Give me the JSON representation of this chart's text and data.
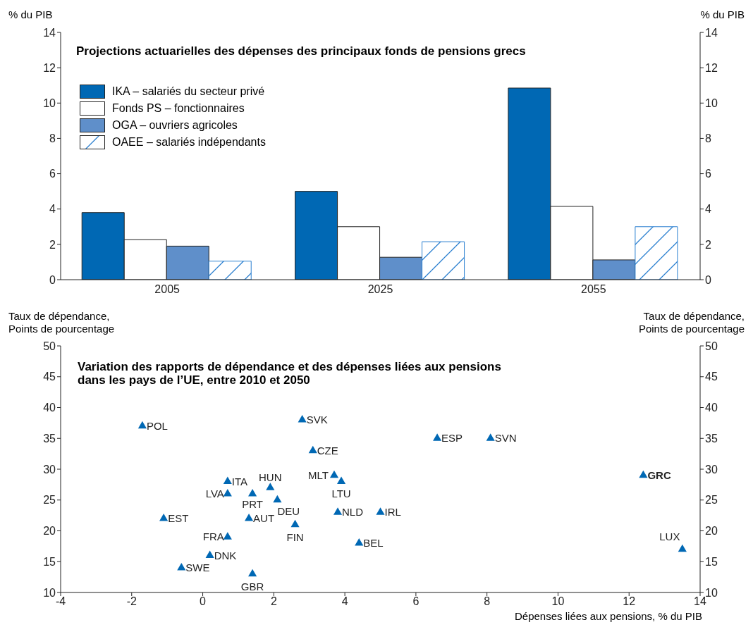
{
  "chart_data": [
    {
      "type": "bar",
      "title": "Projections actuarielles des dépenses des principaux fonds de pensions grecs",
      "ylabel": "% du PIB",
      "y2label": "% du PIB",
      "categories": [
        "2005",
        "2025",
        "2055"
      ],
      "series": [
        {
          "name": "IKA – salariés du secteur privé",
          "color": "#0068b4",
          "values": [
            3.8,
            5.0,
            10.85
          ]
        },
        {
          "name": "Fonds PS – fonctionnaires",
          "color": "#ffffff",
          "values": [
            2.27,
            3.0,
            4.15
          ]
        },
        {
          "name": "OGA – ouvriers agricoles",
          "color": "#5f8fca",
          "values": [
            1.9,
            1.27,
            1.12
          ]
        },
        {
          "name": "OAEE – salariés indépendants",
          "color": "#2a7fd0",
          "values": [
            1.05,
            2.15,
            3.0
          ]
        }
      ],
      "ylim": [
        0,
        14
      ],
      "yticks": [
        0,
        2,
        4,
        6,
        8,
        10,
        12,
        14
      ],
      "y2lim": [
        0,
        14
      ],
      "y2ticks": [
        0,
        2,
        4,
        6,
        8,
        10,
        12,
        14
      ],
      "legend": "top left"
    },
    {
      "type": "scatter",
      "title": "Variation des rapports de dépendance et des dépenses liées aux pensions\ndans les pays de l’UE, entre 2010 et 2050",
      "xlabel": "Dépenses liées aux pensions, % du PIB",
      "ylabel": "Taux de dépendance,\nPoints de pourcentage",
      "y2label": "Taux de dépendance,\nPoints de pourcentage",
      "x": [
        -1.7,
        2.8,
        6.6,
        8.1,
        3.1,
        3.7,
        3.9,
        12.4,
        0.7,
        1.9,
        0.7,
        1.4,
        2.1,
        3.8,
        5.0,
        -1.1,
        1.3,
        2.6,
        0.7,
        4.4,
        13.5,
        0.2,
        -0.6,
        1.4
      ],
      "values": [
        37,
        38,
        35,
        35,
        33,
        29,
        28,
        29,
        28,
        27,
        26,
        26,
        25,
        23,
        23,
        22,
        22,
        21,
        19,
        18,
        17,
        16,
        14,
        13
      ],
      "color": "#0068b4",
      "marker": "triangle",
      "annotations": [
        {
          "text": "POL",
          "x": -1.7,
          "y": 37
        },
        {
          "text": "SVK",
          "x": 2.8,
          "y": 38
        },
        {
          "text": "ESP",
          "x": 6.6,
          "y": 35
        },
        {
          "text": "SVN",
          "x": 8.1,
          "y": 35
        },
        {
          "text": "CZE",
          "x": 3.1,
          "y": 33
        },
        {
          "text": "MLT",
          "x": 3.7,
          "y": 29
        },
        {
          "text": "LTU",
          "x": 3.9,
          "y": 28
        },
        {
          "text": "GRC",
          "x": 12.4,
          "y": 29
        },
        {
          "text": "ITA",
          "x": 0.7,
          "y": 28
        },
        {
          "text": "HUN",
          "x": 1.9,
          "y": 27
        },
        {
          "text": "LVA",
          "x": 0.7,
          "y": 26
        },
        {
          "text": "PRT",
          "x": 1.4,
          "y": 26
        },
        {
          "text": "DEU",
          "x": 2.1,
          "y": 25
        },
        {
          "text": "NLD",
          "x": 3.8,
          "y": 23
        },
        {
          "text": "IRL",
          "x": 5.0,
          "y": 23
        },
        {
          "text": "EST",
          "x": -1.1,
          "y": 22
        },
        {
          "text": "AUT",
          "x": 1.3,
          "y": 22
        },
        {
          "text": "FIN",
          "x": 2.6,
          "y": 21
        },
        {
          "text": "FRA",
          "x": 0.7,
          "y": 19
        },
        {
          "text": "BEL",
          "x": 4.4,
          "y": 18
        },
        {
          "text": "LUX",
          "x": 13.5,
          "y": 17
        },
        {
          "text": "DNK",
          "x": 0.2,
          "y": 16
        },
        {
          "text": "SWE",
          "x": -0.6,
          "y": 14
        },
        {
          "text": "GBR",
          "x": 1.4,
          "y": 13
        }
      ],
      "xlim": [
        -4,
        14
      ],
      "xticks": [
        -4,
        -2,
        0,
        2,
        4,
        6,
        8,
        10,
        12,
        14
      ],
      "ylim": [
        10,
        50
      ],
      "yticks": [
        10,
        15,
        20,
        25,
        30,
        35,
        40,
        45,
        50
      ],
      "y2lim": [
        10,
        50
      ],
      "y2ticks": [
        10,
        15,
        20,
        25,
        30,
        35,
        40,
        45,
        50
      ],
      "legend": false
    }
  ]
}
